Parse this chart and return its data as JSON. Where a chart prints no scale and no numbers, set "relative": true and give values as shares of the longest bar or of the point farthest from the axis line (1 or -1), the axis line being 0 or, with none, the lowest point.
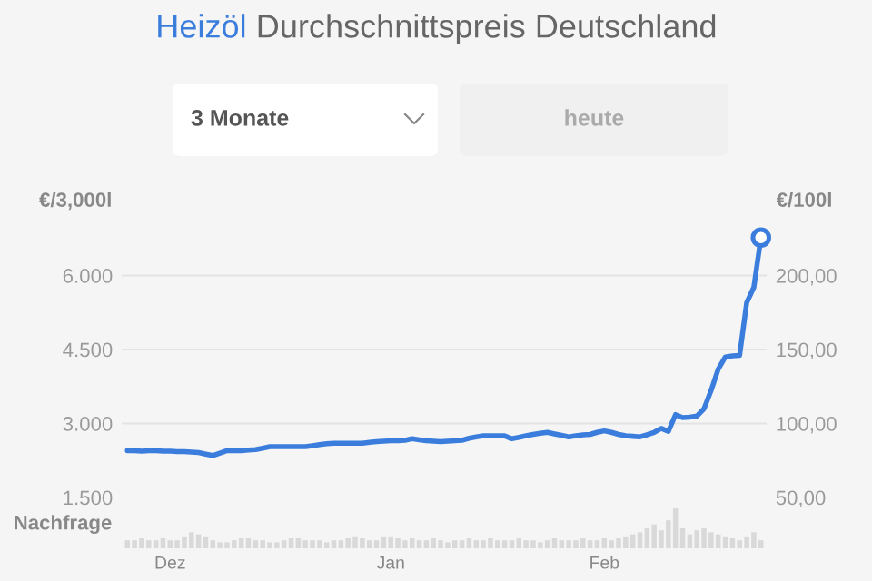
{
  "chart_data": [
    {
      "type": "line",
      "title": "Heizöl Durchschnittspreis Deutschland",
      "ylabel": "€/3,000l",
      "y2label": "€/100l",
      "annotations": [
        "3 Monate",
        "heute"
      ],
      "categories": [
        null,
        null,
        null,
        null,
        null,
        null,
        null,
        null,
        null,
        null,
        null,
        null,
        null,
        null,
        null,
        null,
        null,
        null,
        null,
        null,
        null,
        null,
        null,
        null,
        null,
        null,
        null,
        null,
        null,
        null,
        null,
        null,
        null,
        null,
        null,
        null,
        null,
        null,
        null,
        null,
        null,
        null,
        null,
        null,
        null,
        null,
        null,
        null,
        null,
        null,
        null,
        null,
        null,
        null,
        null,
        null,
        null,
        null,
        null,
        null,
        null,
        null,
        null,
        null,
        null,
        null,
        null,
        null,
        null,
        null,
        null,
        null,
        null,
        null,
        null,
        null,
        null,
        null,
        null,
        null,
        null,
        null,
        null,
        null,
        null,
        null,
        null,
        null,
        null,
        null
      ],
      "ylim": [
        1500,
        7500
      ],
      "yticks": [
        {
          "value": 1500,
          "label": "1.500"
        },
        {
          "value": 3000,
          "label": "3.000"
        },
        {
          "value": 4500,
          "label": "4.500"
        },
        {
          "value": 6000,
          "label": "6.000"
        },
        {
          "value": 7500,
          "label": null
        }
      ],
      "y2lim": [
        50,
        250
      ],
      "y2ticks": [
        {
          "value": 50,
          "label": "50,00"
        },
        {
          "value": 100,
          "label": "100,00"
        },
        {
          "value": 150,
          "label": "150,00"
        },
        {
          "value": 200,
          "label": "200,00"
        },
        {
          "value": 250,
          "label": null
        }
      ],
      "grid": "y",
      "tick_labels": "y",
      "series": [
        {
          "type": "line",
          "color": "#3b7ddd",
          "values": [
            2450,
            2450,
            2440,
            2450,
            2450,
            2440,
            2440,
            2430,
            2430,
            2420,
            2410,
            2380,
            2350,
            2400,
            2450,
            2450,
            2450,
            2460,
            2470,
            2500,
            2530,
            2530,
            2530,
            2530,
            2530,
            2530,
            2550,
            2570,
            2590,
            2600,
            2600,
            2600,
            2600,
            2600,
            2620,
            2630,
            2640,
            2650,
            2650,
            2660,
            2690,
            2670,
            2650,
            2640,
            2630,
            2640,
            2650,
            2660,
            2700,
            2730,
            2750,
            2750,
            2750,
            2750,
            2690,
            2720,
            2750,
            2780,
            2800,
            2820,
            2790,
            2760,
            2730,
            2750,
            2770,
            2780,
            2820,
            2850,
            2820,
            2780,
            2750,
            2740,
            2730,
            2770,
            2820,
            2900,
            2840,
            3180,
            3120,
            3130,
            3150,
            3300,
            3670,
            4100,
            4350,
            4370,
            4380,
            5450,
            5760,
            6770
          ]
        },
        {
          "type": "scatter",
          "color": "#3b7ddd",
          "values": [
            null,
            null,
            null,
            null,
            null,
            null,
            null,
            null,
            null,
            null,
            null,
            null,
            null,
            null,
            null,
            null,
            null,
            null,
            null,
            null,
            null,
            null,
            null,
            null,
            null,
            null,
            null,
            null,
            null,
            null,
            null,
            null,
            null,
            null,
            null,
            null,
            null,
            null,
            null,
            null,
            null,
            null,
            null,
            null,
            null,
            null,
            null,
            null,
            null,
            null,
            null,
            null,
            null,
            null,
            null,
            null,
            null,
            null,
            null,
            null,
            null,
            null,
            null,
            null,
            null,
            null,
            null,
            null,
            null,
            null,
            null,
            null,
            null,
            null,
            null,
            null,
            null,
            null,
            null,
            null,
            null,
            null,
            null,
            null,
            null,
            null,
            null,
            null,
            null,
            6770
          ]
        }
      ]
    },
    {
      "type": "bar",
      "relative": true,
      "ylabel": "Nachfrage",
      "color": "#d9d9d9",
      "tick_labels": "x",
      "categories": [
        null,
        null,
        null,
        null,
        null,
        null,
        "Dez",
        null,
        null,
        null,
        null,
        null,
        null,
        null,
        null,
        null,
        null,
        null,
        null,
        null,
        null,
        null,
        null,
        null,
        null,
        null,
        null,
        null,
        null,
        null,
        null,
        null,
        null,
        null,
        null,
        null,
        null,
        "Jan",
        null,
        null,
        null,
        null,
        null,
        null,
        null,
        null,
        null,
        null,
        null,
        null,
        null,
        null,
        null,
        null,
        null,
        null,
        null,
        null,
        null,
        null,
        null,
        null,
        null,
        null,
        null,
        null,
        null,
        "Feb",
        null,
        null,
        null,
        null,
        null,
        null,
        null,
        null,
        null,
        null,
        null,
        null,
        null,
        null,
        null,
        null,
        null,
        null,
        null,
        null,
        null,
        null
      ],
      "values": [
        0.2,
        0.2,
        0.25,
        0.2,
        0.2,
        0.25,
        0.2,
        0.2,
        0.3,
        0.4,
        0.35,
        0.3,
        0.2,
        0.15,
        0.15,
        0.2,
        0.25,
        0.25,
        0.2,
        0.2,
        0.15,
        0.15,
        0.2,
        0.25,
        0.25,
        0.2,
        0.2,
        0.2,
        0.15,
        0.2,
        0.2,
        0.25,
        0.3,
        0.25,
        0.2,
        0.2,
        0.3,
        0.3,
        0.25,
        0.2,
        0.25,
        0.2,
        0.2,
        0.25,
        0.2,
        0.15,
        0.2,
        0.2,
        0.25,
        0.2,
        0.2,
        0.25,
        0.2,
        0.2,
        0.2,
        0.25,
        0.2,
        0.2,
        0.15,
        0.2,
        0.25,
        0.2,
        0.2,
        0.2,
        0.25,
        0.2,
        0.2,
        0.25,
        0.2,
        0.25,
        0.3,
        0.35,
        0.4,
        0.5,
        0.6,
        0.45,
        0.7,
        1.0,
        0.5,
        0.35,
        0.45,
        0.5,
        0.4,
        0.35,
        0.3,
        0.25,
        0.2,
        0.3,
        0.4,
        0.2
      ]
    }
  ]
}
